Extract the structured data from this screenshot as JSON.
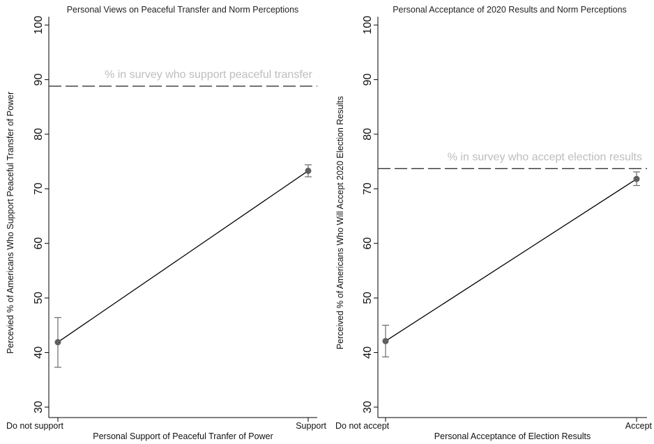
{
  "chart_data": [
    {
      "type": "line",
      "title": "Personal Views on Peaceful Transfer and Norm Perceptions",
      "xlabel": "Personal Support of Peaceful Tranfer of Power",
      "ylabel": "Percevied % of Americans Who Support Peaceful Transfer of Power",
      "categories": [
        "Do not support",
        "Support"
      ],
      "ylim": [
        30,
        100
      ],
      "yticks": [
        30,
        40,
        50,
        60,
        70,
        80,
        90,
        100
      ],
      "series": [
        {
          "values": [
            41.9,
            73.3
          ],
          "ci_low": [
            37.3,
            72.2
          ],
          "ci_high": [
            46.4,
            74.4
          ]
        }
      ],
      "reference_line": {
        "value": 88.8,
        "label": "% in survey who support peaceful transfer",
        "label_position": "right"
      },
      "grid": false
    },
    {
      "type": "line",
      "title": "Personal Acceptance of 2020 Results and Norm Perceptions",
      "xlabel": "Personal Acceptance of Election Results",
      "ylabel": "Perceived % of Americans Who Will Accept 2020 Election Results",
      "categories": [
        "Do not accept",
        "Accept"
      ],
      "ylim": [
        30,
        100
      ],
      "yticks": [
        30,
        40,
        50,
        60,
        70,
        80,
        90,
        100
      ],
      "series": [
        {
          "values": [
            42.1,
            71.8
          ],
          "ci_low": [
            39.2,
            70.6
          ],
          "ci_high": [
            45.0,
            73.1
          ]
        }
      ],
      "reference_line": {
        "value": 73.7,
        "label": "% in survey who accept election results",
        "label_position": "right"
      },
      "grid": false
    }
  ],
  "colors": {
    "line": "#000000",
    "marker": "#5f5f5f",
    "errorbar": "#6a6a6a",
    "reference_line": "#333333",
    "reference_label": "#bdbdbd",
    "axis": "#000000"
  }
}
